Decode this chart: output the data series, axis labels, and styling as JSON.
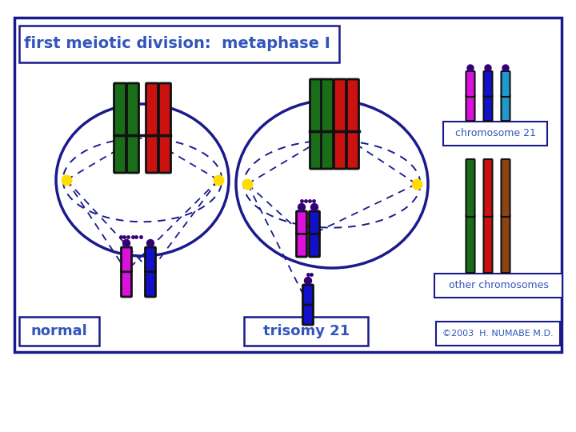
{
  "title": "first meiotic division:  metaphase I",
  "label_normal": "normal",
  "label_trisomy": "trisomy 21",
  "label_chr21": "chromosome 21",
  "label_other": "other chromosomes",
  "copyright": "©2003  H. NUMABE M.D.",
  "bg_color": "#ffffff",
  "border_color": "#1a1a8c",
  "text_color": "#3355bb",
  "title_bg": "#ffffff",
  "chr_colors": {
    "dark_green": "#1a6e1a",
    "red": "#cc1111",
    "magenta": "#dd11dd",
    "blue": "#1111cc",
    "cyan": "#2299cc",
    "brown": "#8b4513"
  },
  "spindle_color": "#1a1a8c",
  "centrosome_color": "#ffdd00",
  "knob_color": "#330077",
  "fig_w": 7.2,
  "fig_h": 5.4,
  "dpi": 100
}
